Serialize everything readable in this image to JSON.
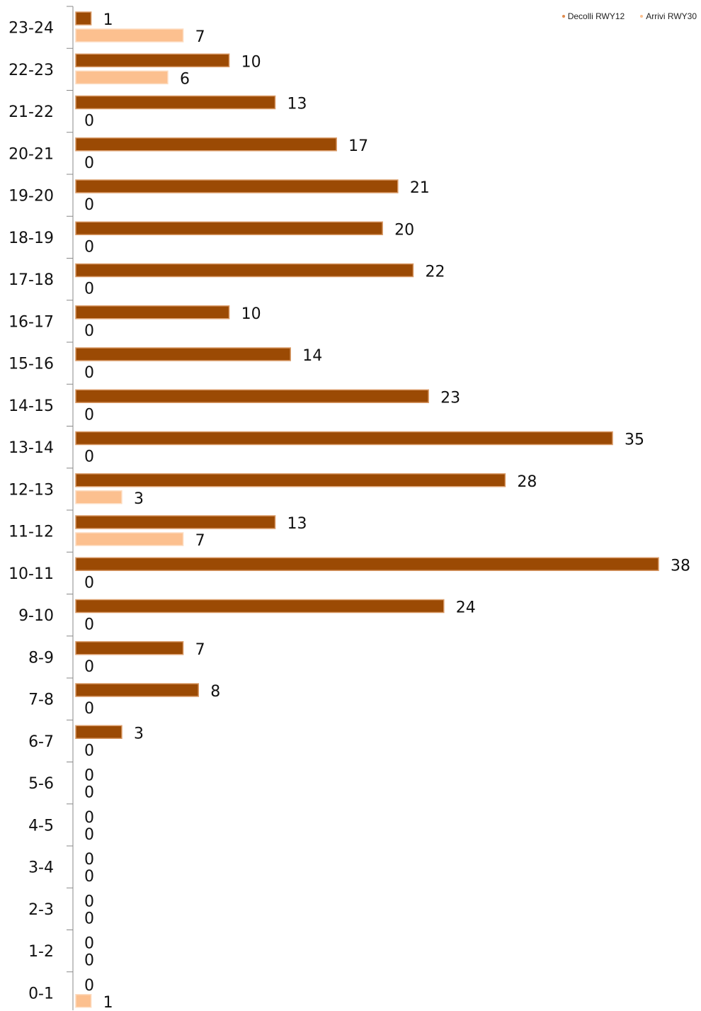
{
  "chart_data": {
    "type": "bar",
    "orientation": "horizontal",
    "title": "",
    "xlabel": "",
    "ylabel": "",
    "categories": [
      "23-24",
      "22-23",
      "21-22",
      "20-21",
      "19-20",
      "18-19",
      "17-18",
      "16-17",
      "15-16",
      "14-15",
      "13-14",
      "12-13",
      "11-12",
      "10-11",
      "9-10",
      "8-9",
      "7-8",
      "6-7",
      "5-6",
      "4-5",
      "3-4",
      "2-3",
      "1-2",
      "0-1"
    ],
    "series": [
      {
        "name": "Decolli RWY12",
        "color": "#9b4a04",
        "values": [
          1,
          10,
          13,
          17,
          21,
          20,
          22,
          10,
          14,
          23,
          35,
          28,
          13,
          38,
          24,
          7,
          8,
          3,
          0,
          0,
          0,
          0,
          0,
          0
        ]
      },
      {
        "name": "Arrivi RWY30",
        "color": "#fcc08f",
        "values": [
          7,
          6,
          0,
          0,
          0,
          0,
          0,
          0,
          0,
          0,
          0,
          3,
          7,
          0,
          0,
          0,
          0,
          0,
          0,
          0,
          0,
          0,
          0,
          1
        ]
      }
    ],
    "xlim": [
      0,
      38
    ],
    "grid": false,
    "data_labels": true,
    "legend_position": "top-right"
  }
}
